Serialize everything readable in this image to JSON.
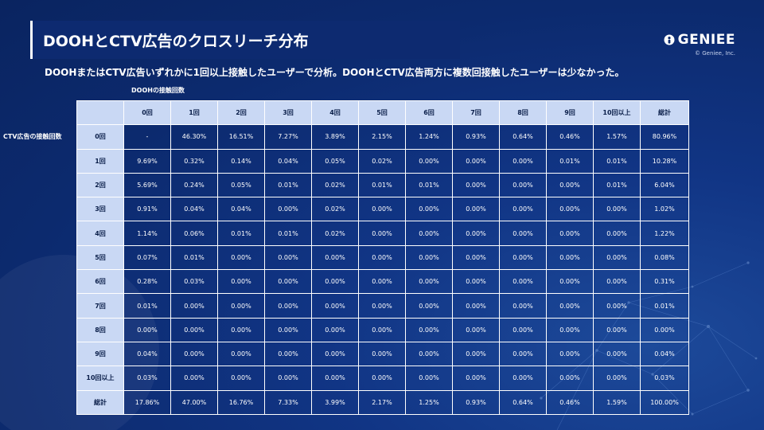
{
  "title": "DOOHとCTV広告のクロスリーチ分布",
  "subtitle": "DOOHまたはCTV広告いずれかに1回以上接触したユーザーで分析。DOOHとCTV広告両方に複数回接触したユーザーは少なかった。",
  "logo": {
    "text": "GENIEE",
    "copyright": "© Geniee, Inc."
  },
  "axis": {
    "dooh_label": "DOOHの接触回数",
    "ctv_label": "CTV広告の接触回数"
  },
  "table": {
    "headers": [
      "0回",
      "1回",
      "2回",
      "3回",
      "4回",
      "5回",
      "6回",
      "7回",
      "8回",
      "9回",
      "10回以上",
      "総計"
    ],
    "rows": [
      {
        "label": "0回",
        "values": [
          "-",
          "46.30%",
          "16.51%",
          "7.27%",
          "3.89%",
          "2.15%",
          "1.24%",
          "0.93%",
          "0.64%",
          "0.46%",
          "1.57%",
          "80.96%"
        ]
      },
      {
        "label": "1回",
        "values": [
          "9.69%",
          "0.32%",
          "0.14%",
          "0.04%",
          "0.05%",
          "0.02%",
          "0.00%",
          "0.00%",
          "0.00%",
          "0.01%",
          "0.01%",
          "10.28%"
        ]
      },
      {
        "label": "2回",
        "values": [
          "5.69%",
          "0.24%",
          "0.05%",
          "0.01%",
          "0.02%",
          "0.01%",
          "0.01%",
          "0.00%",
          "0.00%",
          "0.00%",
          "0.01%",
          "6.04%"
        ]
      },
      {
        "label": "3回",
        "values": [
          "0.91%",
          "0.04%",
          "0.04%",
          "0.00%",
          "0.02%",
          "0.00%",
          "0.00%",
          "0.00%",
          "0.00%",
          "0.00%",
          "0.00%",
          "1.02%"
        ]
      },
      {
        "label": "4回",
        "values": [
          "1.14%",
          "0.06%",
          "0.01%",
          "0.01%",
          "0.02%",
          "0.00%",
          "0.00%",
          "0.00%",
          "0.00%",
          "0.00%",
          "0.00%",
          "1.22%"
        ]
      },
      {
        "label": "5回",
        "values": [
          "0.07%",
          "0.01%",
          "0.00%",
          "0.00%",
          "0.00%",
          "0.00%",
          "0.00%",
          "0.00%",
          "0.00%",
          "0.00%",
          "0.00%",
          "0.08%"
        ]
      },
      {
        "label": "6回",
        "values": [
          "0.28%",
          "0.03%",
          "0.00%",
          "0.00%",
          "0.00%",
          "0.00%",
          "0.00%",
          "0.00%",
          "0.00%",
          "0.00%",
          "0.00%",
          "0.31%"
        ]
      },
      {
        "label": "7回",
        "values": [
          "0.01%",
          "0.00%",
          "0.00%",
          "0.00%",
          "0.00%",
          "0.00%",
          "0.00%",
          "0.00%",
          "0.00%",
          "0.00%",
          "0.00%",
          "0.01%"
        ]
      },
      {
        "label": "8回",
        "values": [
          "0.00%",
          "0.00%",
          "0.00%",
          "0.00%",
          "0.00%",
          "0.00%",
          "0.00%",
          "0.00%",
          "0.00%",
          "0.00%",
          "0.00%",
          "0.00%"
        ]
      },
      {
        "label": "9回",
        "values": [
          "0.04%",
          "0.00%",
          "0.00%",
          "0.00%",
          "0.00%",
          "0.00%",
          "0.00%",
          "0.00%",
          "0.00%",
          "0.00%",
          "0.00%",
          "0.04%"
        ]
      },
      {
        "label": "10回以上",
        "values": [
          "0.03%",
          "0.00%",
          "0.00%",
          "0.00%",
          "0.00%",
          "0.00%",
          "0.00%",
          "0.00%",
          "0.00%",
          "0.00%",
          "0.00%",
          "0.03%"
        ]
      },
      {
        "label": "総計",
        "values": [
          "17.86%",
          "47.00%",
          "16.76%",
          "7.33%",
          "3.99%",
          "2.17%",
          "1.25%",
          "0.93%",
          "0.64%",
          "0.46%",
          "1.59%",
          "100.00%"
        ]
      }
    ]
  },
  "colors": {
    "background": "#0c2a6e",
    "title_bar": "#0d2a70",
    "header_cell": "#c9d8f4",
    "header_text": "#0b1f4a",
    "border": "#ffffff"
  }
}
